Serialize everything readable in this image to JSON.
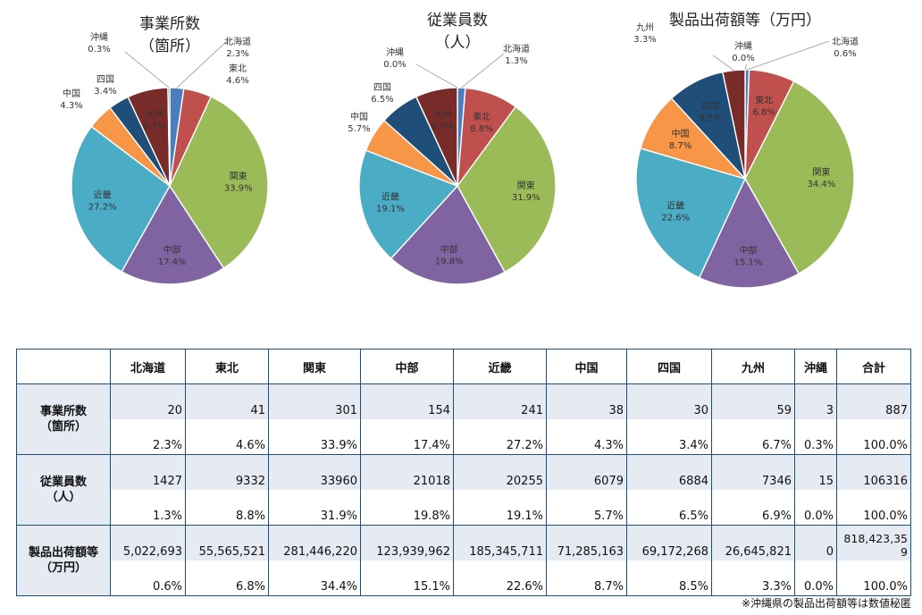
{
  "chart_data": [
    {
      "type": "pie",
      "title": "事業所数",
      "subtitle": "（箇所）",
      "slices": [
        {
          "name": "北海道",
          "value": 2.3,
          "label": "2.3%"
        },
        {
          "name": "東北",
          "value": 4.6,
          "label": "4.6%"
        },
        {
          "name": "関東",
          "value": 33.9,
          "label": "33.9%"
        },
        {
          "name": "中部",
          "value": 17.4,
          "label": "17.4%"
        },
        {
          "name": "近畿",
          "value": 27.2,
          "label": "27.2%"
        },
        {
          "name": "中国",
          "value": 4.3,
          "label": "4.3%"
        },
        {
          "name": "四国",
          "value": 3.4,
          "label": "3.4%"
        },
        {
          "name": "九州",
          "value": 6.7,
          "label": "6.7%"
        },
        {
          "name": "沖縄",
          "value": 0.3,
          "label": "0.3%"
        }
      ]
    },
    {
      "type": "pie",
      "title": "従業員数",
      "subtitle": "（人）",
      "slices": [
        {
          "name": "北海道",
          "value": 1.3,
          "label": "1.3%"
        },
        {
          "name": "東北",
          "value": 8.8,
          "label": "8.8%"
        },
        {
          "name": "関東",
          "value": 31.9,
          "label": "31.9%"
        },
        {
          "name": "中部",
          "value": 19.8,
          "label": "19.8%"
        },
        {
          "name": "近畿",
          "value": 19.1,
          "label": "19.1%"
        },
        {
          "name": "中国",
          "value": 5.7,
          "label": "5.7%"
        },
        {
          "name": "四国",
          "value": 6.5,
          "label": "6.5%"
        },
        {
          "name": "九州",
          "value": 6.9,
          "label": "6.9%"
        },
        {
          "name": "沖縄",
          "value": 0.0,
          "label": "0.0%"
        }
      ]
    },
    {
      "type": "pie",
      "title": "製品出荷額等（万円）",
      "subtitle": "",
      "slices": [
        {
          "name": "北海道",
          "value": 0.6,
          "label": "0.6%"
        },
        {
          "name": "東北",
          "value": 6.8,
          "label": "6.8%"
        },
        {
          "name": "関東",
          "value": 34.4,
          "label": "34.4%"
        },
        {
          "name": "中部",
          "value": 15.1,
          "label": "15.1%"
        },
        {
          "name": "近畿",
          "value": 22.6,
          "label": "22.6%"
        },
        {
          "name": "中国",
          "value": 8.7,
          "label": "8.7%"
        },
        {
          "name": "四国",
          "value": 8.5,
          "label": "8.5%"
        },
        {
          "name": "九州",
          "value": 3.3,
          "label": "3.3%"
        },
        {
          "name": "沖縄",
          "value": 0.0,
          "label": "0.0%"
        }
      ]
    }
  ],
  "colors": {
    "北海道": "#4a7ebf",
    "東北": "#c0504d",
    "関東": "#9bbb59",
    "中部": "#8064a2",
    "近畿": "#4bacc6",
    "中国": "#f79646",
    "四国": "#1f4e79",
    "九州": "#772c2a",
    "沖縄": "#5f7530"
  },
  "table": {
    "columns": [
      "北海道",
      "東北",
      "関東",
      "中部",
      "近畿",
      "中国",
      "四国",
      "九州",
      "沖縄",
      "合計"
    ],
    "rows": [
      {
        "label_line1": "事業所数",
        "label_line2": "（箇所）",
        "values": [
          "20",
          "41",
          "301",
          "154",
          "241",
          "38",
          "30",
          "59",
          "3",
          "887"
        ],
        "percents": [
          "2.3%",
          "4.6%",
          "33.9%",
          "17.4%",
          "27.2%",
          "4.3%",
          "3.4%",
          "6.7%",
          "0.3%",
          "100.0%"
        ]
      },
      {
        "label_line1": "従業員数",
        "label_line2": "（人）",
        "values": [
          "1427",
          "9332",
          "33960",
          "21018",
          "20255",
          "6079",
          "6884",
          "7346",
          "15",
          "106316"
        ],
        "percents": [
          "1.3%",
          "8.8%",
          "31.9%",
          "19.8%",
          "19.1%",
          "5.7%",
          "6.5%",
          "6.9%",
          "0.0%",
          "100.0%"
        ]
      },
      {
        "label_line1": "製品出荷額等",
        "label_line2": "（万円）",
        "values": [
          "5,022,693",
          "55,565,521",
          "281,446,220",
          "123,939,962",
          "185,345,711",
          "71,285,163",
          "69,172,268",
          "26,645,821",
          "0",
          "818,423,359"
        ],
        "percents": [
          "0.6%",
          "6.8%",
          "34.4%",
          "15.1%",
          "22.6%",
          "8.7%",
          "8.5%",
          "3.3%",
          "0.0%",
          "100.0%"
        ]
      }
    ]
  },
  "note": "※沖縄県の製品出荷額等は数値秘匿"
}
